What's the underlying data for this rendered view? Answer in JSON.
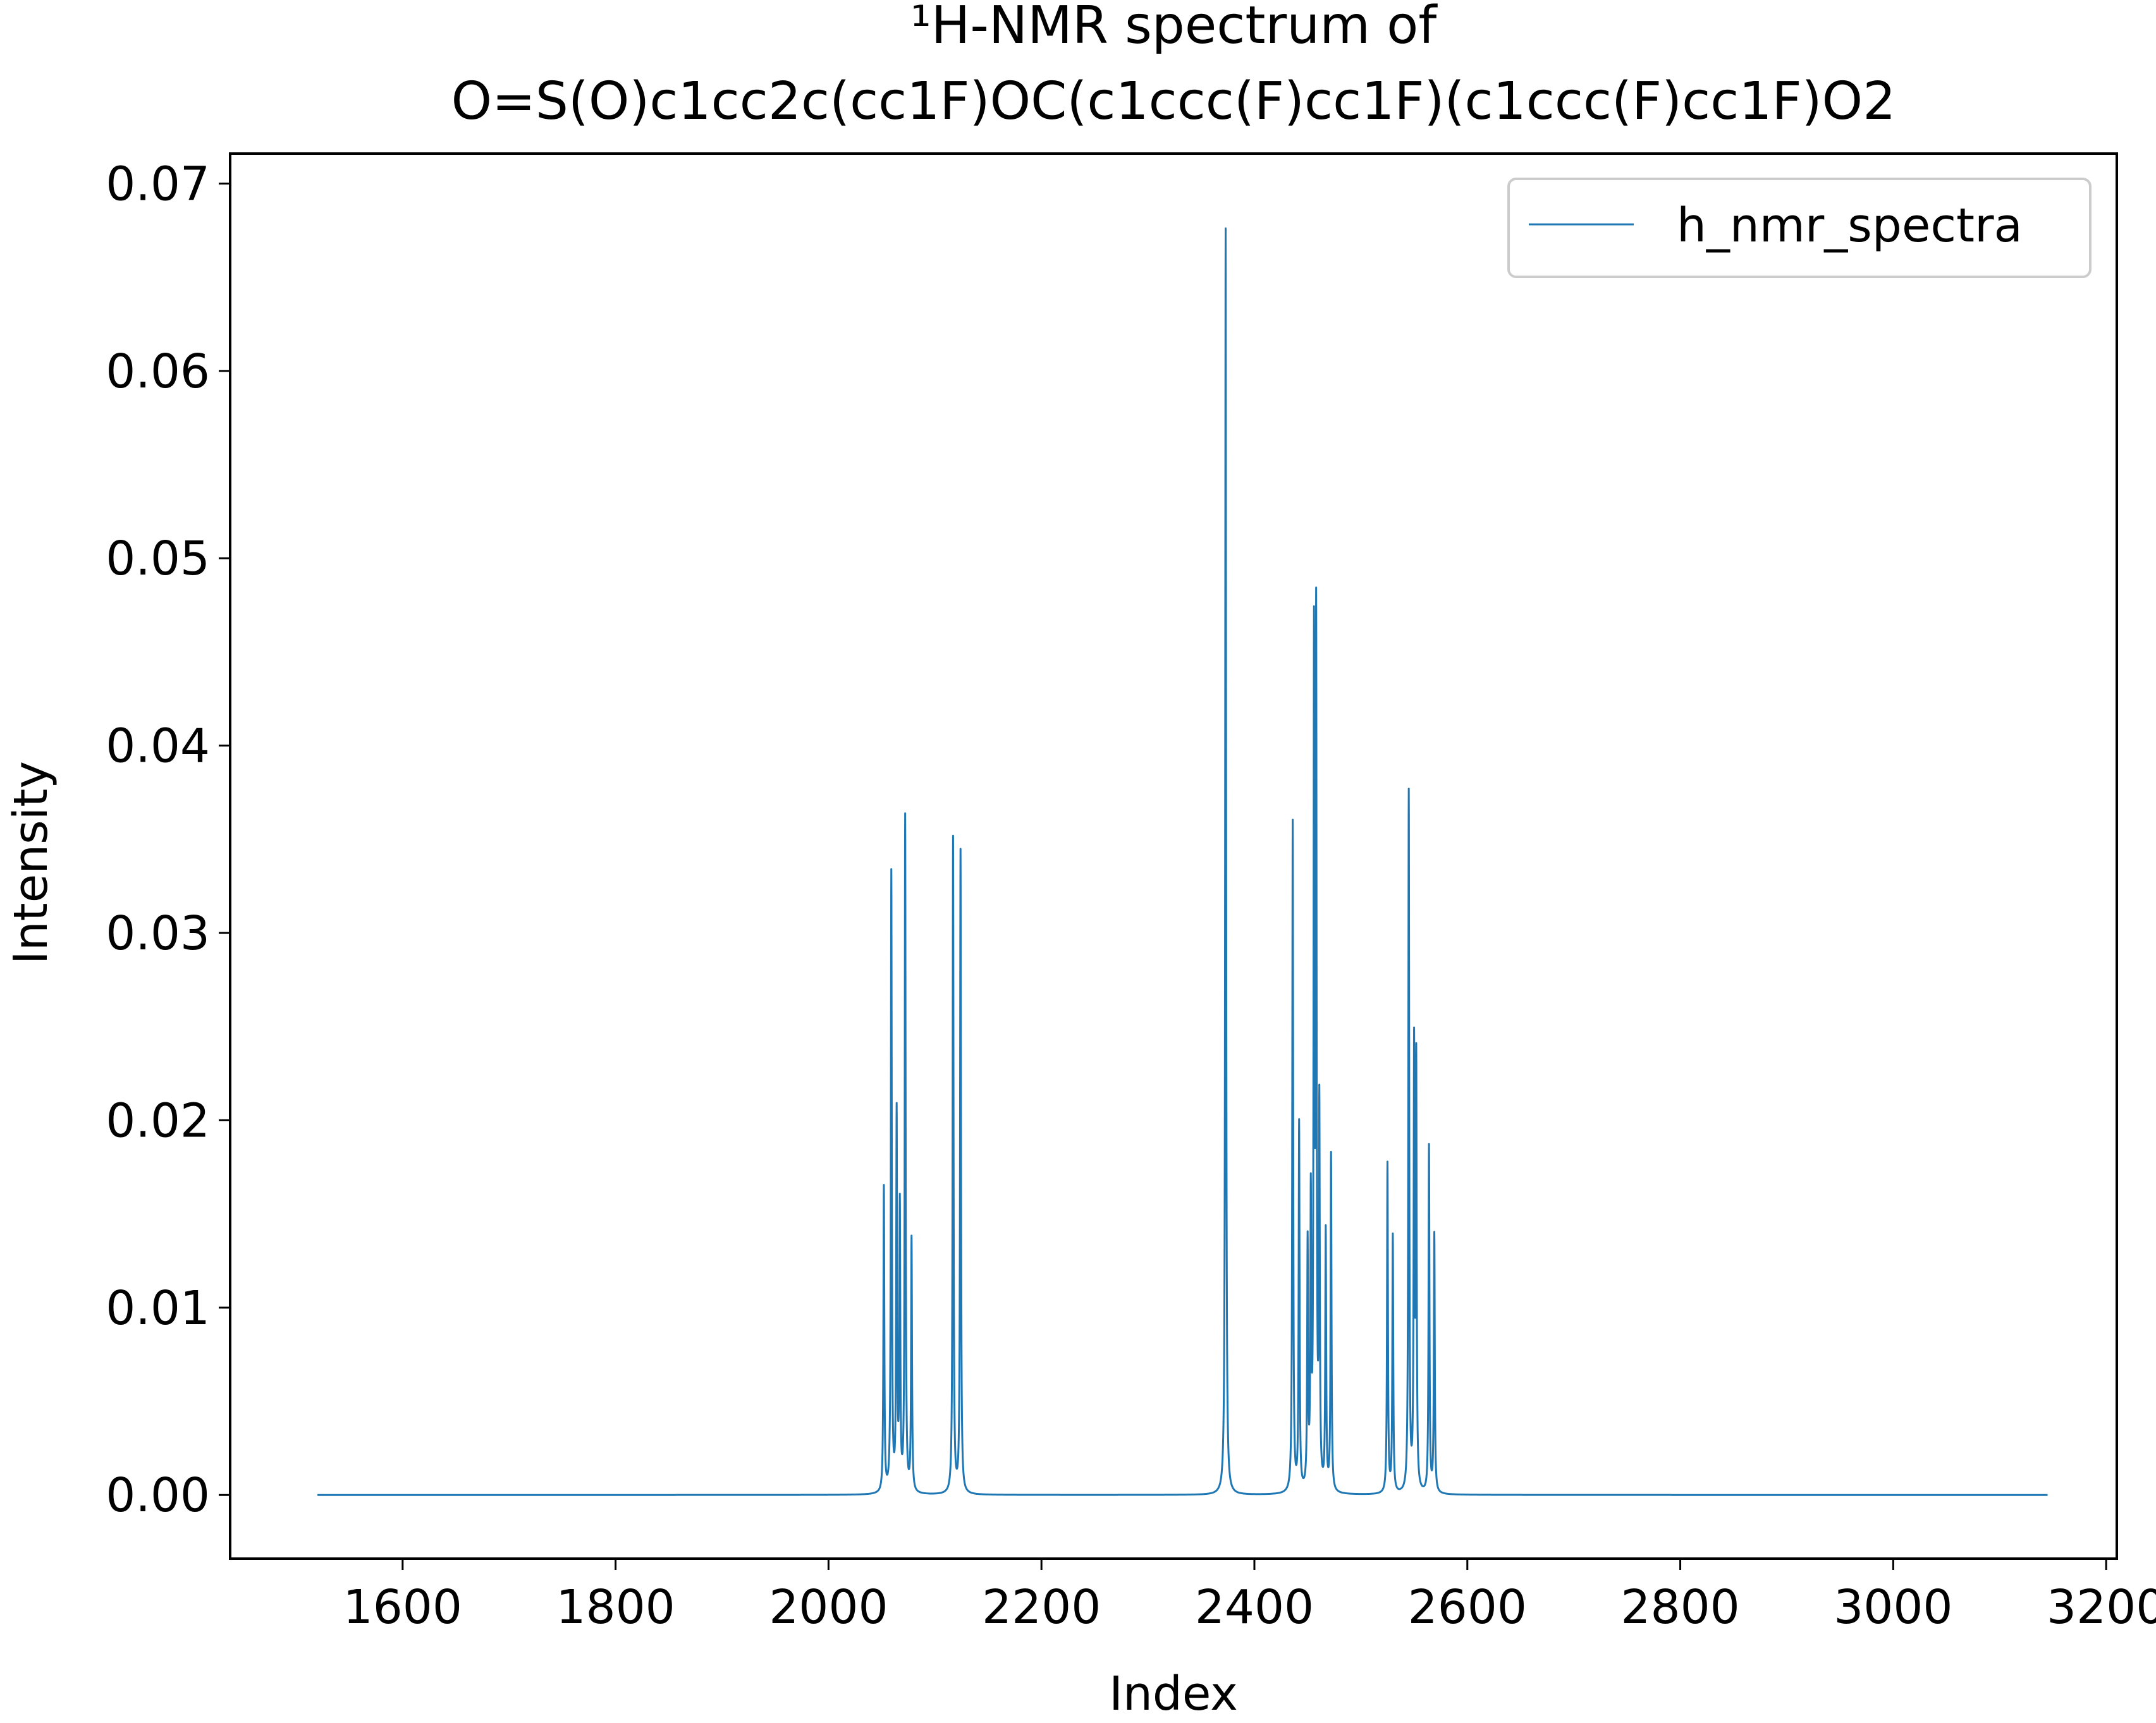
{
  "chart_data": {
    "type": "line",
    "title_lines": [
      "¹H-NMR spectrum of",
      "O=S(O)c1cc2c(cc1F)OC(c1ccc(F)cc1F)(c1ccc(F)cc1F)O2"
    ],
    "xlabel": "Index",
    "ylabel": "Intensity",
    "xlim": [
      1438,
      3210
    ],
    "ylim": [
      -0.0034,
      0.0716
    ],
    "x_ticks": [
      1600,
      1800,
      2000,
      2200,
      2400,
      2600,
      2800,
      3000,
      3200
    ],
    "x_tick_labels": [
      "1600",
      "1800",
      "2000",
      "2200",
      "2400",
      "2600",
      "2800",
      "3000",
      "3200"
    ],
    "y_ticks": [
      0.0,
      0.01,
      0.02,
      0.03,
      0.04,
      0.05,
      0.06,
      0.07
    ],
    "y_tick_labels": [
      "0.00",
      "0.01",
      "0.02",
      "0.03",
      "0.04",
      "0.05",
      "0.06",
      "0.07"
    ],
    "grid": false,
    "legend_position": "top-right",
    "x_range": [
      1520,
      3145
    ],
    "linewidth_index": 0.5,
    "series": [
      {
        "name": "h_nmr_spectra",
        "color": "#1f77b4",
        "peaks": [
          [
            2052,
            0.0163
          ],
          [
            2059,
            0.033
          ],
          [
            2064,
            0.02
          ],
          [
            2067,
            0.015
          ],
          [
            2072,
            0.036
          ],
          [
            2078,
            0.0135
          ],
          [
            2117,
            0.035
          ],
          [
            2124,
            0.0343
          ],
          [
            2373,
            0.0676
          ],
          [
            2436,
            0.0358
          ],
          [
            2442,
            0.0196
          ],
          [
            2450,
            0.013
          ],
          [
            2453,
            0.015
          ],
          [
            2456,
            0.044
          ],
          [
            2458,
            0.045
          ],
          [
            2461,
            0.02
          ],
          [
            2467,
            0.0138
          ],
          [
            2472,
            0.018
          ],
          [
            2525,
            0.0176
          ],
          [
            2530,
            0.0137
          ],
          [
            2545,
            0.0373
          ],
          [
            2550,
            0.0232
          ],
          [
            2552,
            0.0225
          ],
          [
            2564,
            0.0185
          ],
          [
            2569,
            0.0138
          ]
        ]
      }
    ]
  }
}
